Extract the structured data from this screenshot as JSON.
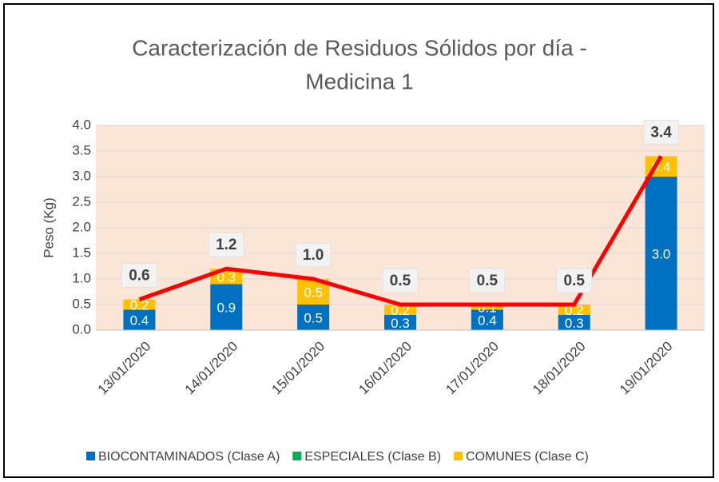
{
  "chart_data": {
    "type": "bar",
    "stacked": true,
    "title": [
      "Caracterización de Residuos Sólidos por día -",
      "Medicina 1"
    ],
    "ylabel": "Peso (Kg)",
    "categories": [
      "13/01/2020",
      "14/01/2020",
      "15/01/2020",
      "16/01/2020",
      "17/01/2020",
      "18/01/2020",
      "19/01/2020"
    ],
    "series": [
      {
        "name": "BIOCONTAMINADOS (Clase A)",
        "color": "#0070c0",
        "values": [
          0.4,
          0.9,
          0.5,
          0.3,
          0.4,
          0.3,
          3.0
        ],
        "value_labels": [
          "0.4",
          "0.9",
          "0.5",
          "0.3",
          "0.4",
          "0.3",
          "3.0"
        ]
      },
      {
        "name": "ESPECIALES (Clase B)",
        "color": "#00b050",
        "values": [
          0,
          0,
          0,
          0,
          0,
          0,
          0
        ]
      },
      {
        "name": "COMUNES (Clase C)",
        "color": "#ffc000",
        "values": [
          0.2,
          0.3,
          0.5,
          0.2,
          0.1,
          0.2,
          0.4
        ],
        "value_labels": [
          "0.2",
          "0.3",
          "0.5",
          "0.2",
          "0.1",
          "0.2",
          "0.4"
        ]
      }
    ],
    "line": {
      "color": "#ff0000",
      "values": [
        0.6,
        1.2,
        1.0,
        0.5,
        0.5,
        0.5,
        3.4
      ],
      "value_labels": [
        "0.6",
        "1.2",
        "1.0",
        "0.5",
        "0.5",
        "0.5",
        "3.4"
      ]
    },
    "ylim": [
      0,
      4
    ],
    "yticks": [
      {
        "value": 0,
        "label": "0.0"
      },
      {
        "value": 0.5,
        "label": "0.5"
      },
      {
        "value": 1,
        "label": "1.0"
      },
      {
        "value": 1.5,
        "label": "1.5"
      },
      {
        "value": 2,
        "label": "2.0"
      },
      {
        "value": 2.5,
        "label": "2.5"
      },
      {
        "value": 3,
        "label": "3.0"
      },
      {
        "value": 3.5,
        "label": "3.5"
      },
      {
        "value": 4,
        "label": "4.0"
      }
    ],
    "grid": true,
    "plot_background": "#fbe5d6",
    "legend": "bottom"
  }
}
